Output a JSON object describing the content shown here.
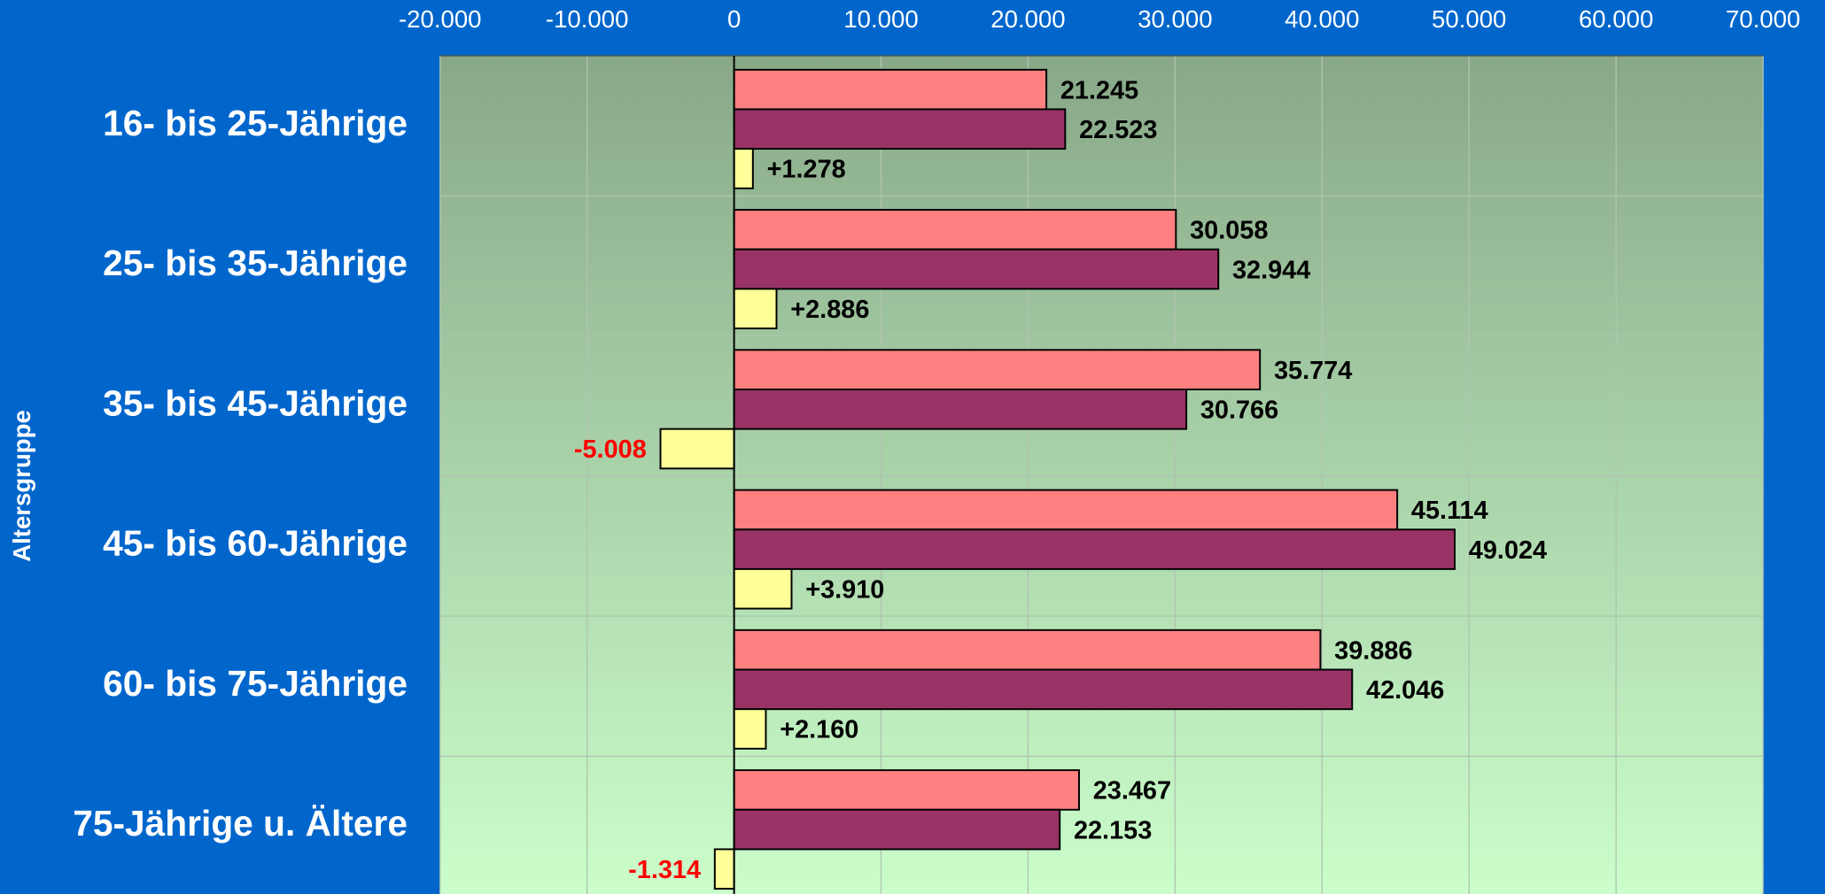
{
  "chart_data": {
    "type": "bar",
    "orientation": "horizontal",
    "y_label": "Altersgruppe",
    "categories": [
      "16- bis 25-Jährige",
      "25- bis 35-Jährige",
      "35- bis 45-Jährige",
      "45- bis 60-Jährige",
      "60- bis 75-Jährige",
      "75-Jährige u. Ältere"
    ],
    "series": [
      {
        "color": "#ff8080",
        "values": [
          21245,
          30058,
          35774,
          45114,
          39886,
          23467
        ],
        "value_labels": [
          "21.245",
          "30.058",
          "35.774",
          "45.114",
          "39.886",
          "23.467"
        ]
      },
      {
        "color": "#993366",
        "values": [
          22523,
          32944,
          30766,
          49024,
          42046,
          22153
        ],
        "value_labels": [
          "22.523",
          "32.944",
          "30.766",
          "49.024",
          "42.046",
          "22.153"
        ]
      },
      {
        "color": "#ffff99",
        "values": [
          1278,
          2886,
          -5008,
          3910,
          2160,
          -1314
        ],
        "value_labels": [
          "+1.278",
          "+2.886",
          "-5.008",
          "+3.910",
          "+2.160",
          "-1.314"
        ]
      }
    ],
    "xlim": [
      -20000,
      70000
    ],
    "xticks": [
      {
        "value": -20000,
        "label": "-20.000"
      },
      {
        "value": -10000,
        "label": "-10.000"
      },
      0,
      {
        "value": 10000,
        "label": "10.000"
      },
      {
        "value": 20000,
        "label": "20.000"
      },
      {
        "value": 30000,
        "label": "30.000"
      },
      {
        "value": 40000,
        "label": "40.000"
      },
      {
        "value": 50000,
        "label": "50.000"
      },
      {
        "value": 60000,
        "label": "60.000"
      },
      {
        "value": 70000,
        "label": "70.000"
      }
    ],
    "grid": true,
    "negative_label_color": "#ff0000"
  }
}
